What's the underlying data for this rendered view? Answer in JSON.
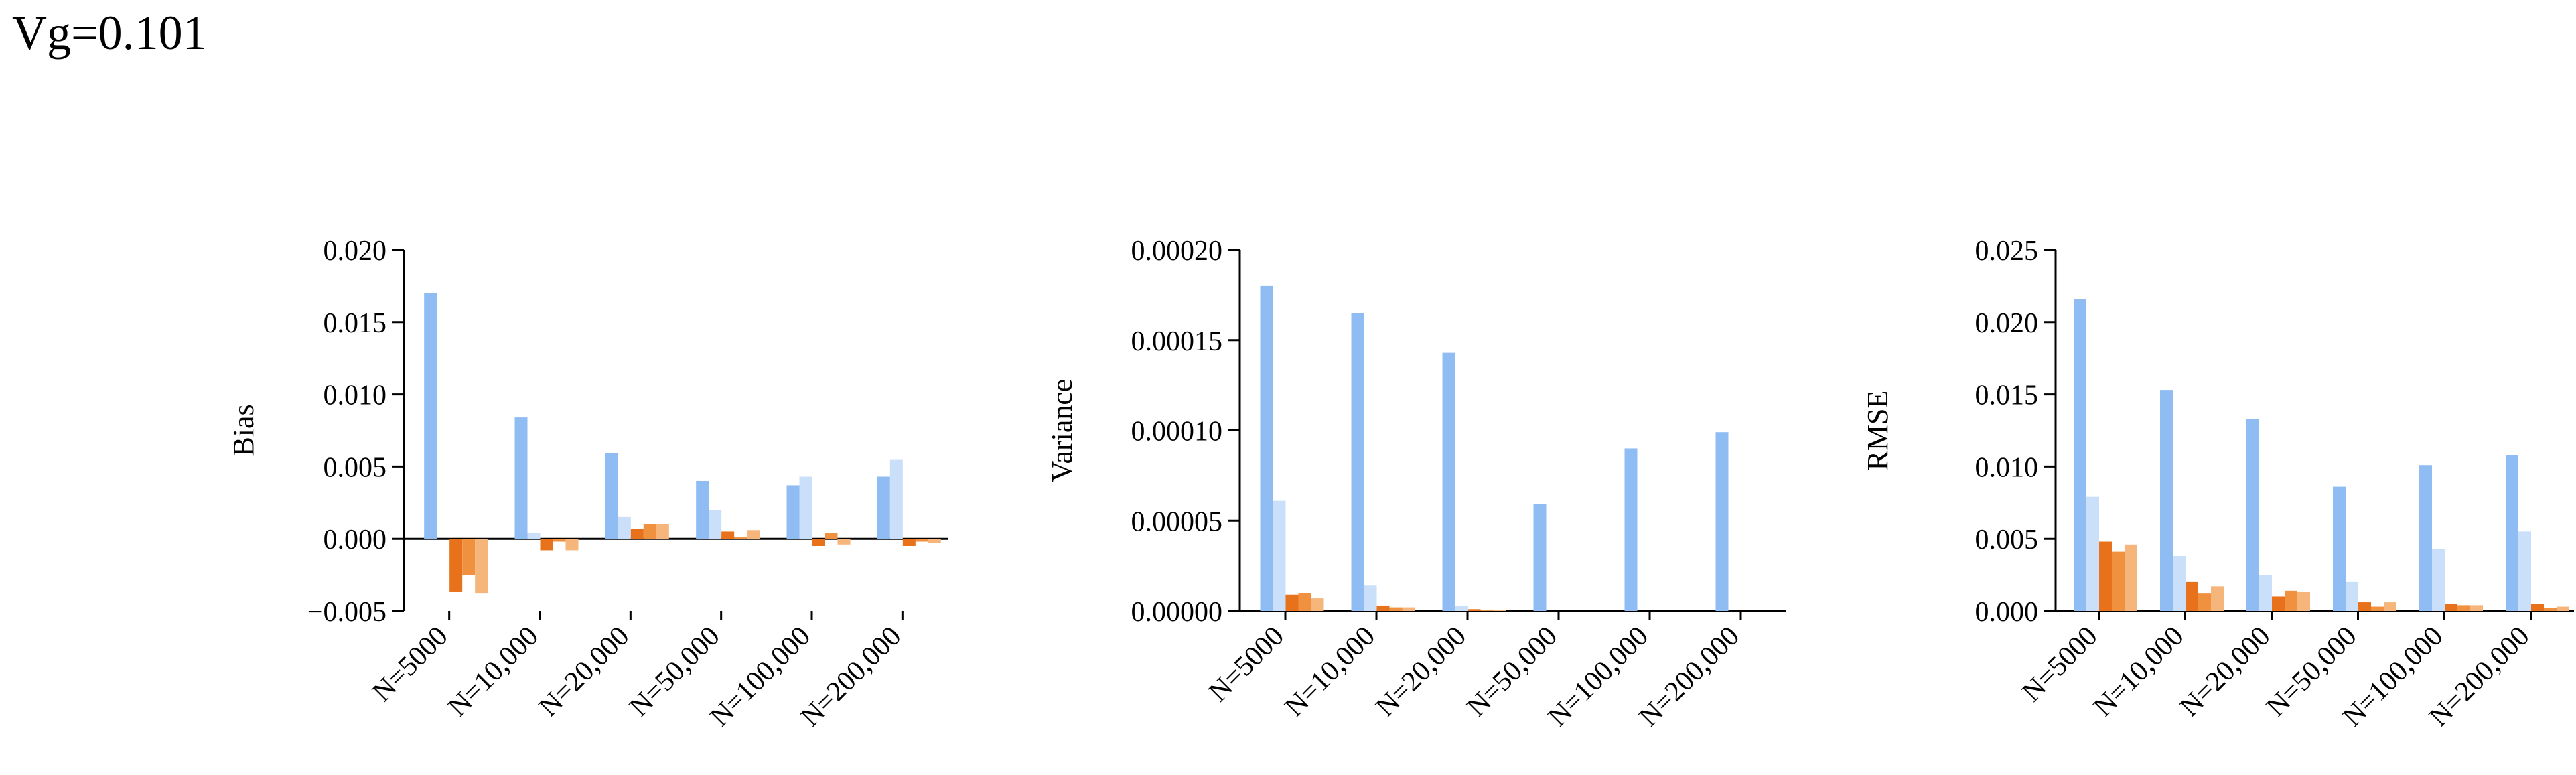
{
  "title": "Vg=0.101",
  "colors": [
    "#8FBCF2",
    "#C9DFFA",
    "#E8721B",
    "#F0913F",
    "#F6B57B"
  ],
  "chart_data": [
    {
      "type": "bar",
      "ylabel": "Bias",
      "ylim": [
        -0.005,
        0.02
      ],
      "yticks": [
        -0.005,
        0.0,
        0.005,
        0.01,
        0.015,
        0.02
      ],
      "tick_labels": [
        "−0.005",
        "0.000",
        "0.005",
        "0.010",
        "0.015",
        "0.020"
      ],
      "categories": [
        "N=5000",
        "N=10,000",
        "N=20,000",
        "N=50,000",
        "N=100,000",
        "N=200,000"
      ],
      "series": [
        {
          "values": [
            0.017,
            0.0084,
            0.0059,
            0.004,
            0.0037,
            0.0043
          ]
        },
        {
          "values": [
            0.0,
            0.0004,
            0.0015,
            0.002,
            0.0043,
            0.0055
          ]
        },
        {
          "values": [
            -0.0037,
            -0.0008,
            0.0007,
            0.0005,
            -0.0005,
            -0.0005
          ]
        },
        {
          "values": [
            -0.0025,
            -0.0002,
            0.001,
            0.0001,
            0.0004,
            -0.0002
          ]
        },
        {
          "values": [
            -0.0038,
            -0.0008,
            0.001,
            0.0006,
            -0.0004,
            -0.0003
          ]
        }
      ]
    },
    {
      "type": "bar",
      "ylabel": "Variance",
      "ylim": [
        0,
        0.0002
      ],
      "yticks": [
        0,
        5e-05,
        0.0001,
        0.00015,
        0.0002
      ],
      "tick_labels": [
        "0.00000",
        "0.00005",
        "0.00010",
        "0.00015",
        "0.00020"
      ],
      "categories": [
        "N=5000",
        "N=10,000",
        "N=20,000",
        "N=50,000",
        "N=100,000",
        "N=200,000"
      ],
      "series": [
        {
          "values": [
            0.00018,
            0.000165,
            0.000143,
            5.9e-05,
            9e-05,
            9.9e-05
          ]
        },
        {
          "values": [
            6.1e-05,
            1.4e-05,
            3e-06,
            0.0,
            0.0,
            0.0
          ]
        },
        {
          "values": [
            9e-06,
            3e-06,
            1e-06,
            0.0,
            0.0,
            0.0
          ]
        },
        {
          "values": [
            1e-05,
            2e-06,
            5e-07,
            0.0,
            0.0,
            0.0
          ]
        },
        {
          "values": [
            7e-06,
            2e-06,
            5e-07,
            0.0,
            0.0,
            0.0
          ]
        }
      ]
    },
    {
      "type": "bar",
      "ylabel": "RMSE",
      "ylim": [
        0,
        0.025
      ],
      "yticks": [
        0,
        0.005,
        0.01,
        0.015,
        0.02,
        0.025
      ],
      "tick_labels": [
        "0.000",
        "0.005",
        "0.010",
        "0.015",
        "0.020",
        "0.025"
      ],
      "categories": [
        "N=5000",
        "N=10,000",
        "N=20,000",
        "N=50,000",
        "N=100,000",
        "N=200,000"
      ],
      "series": [
        {
          "values": [
            0.0216,
            0.0153,
            0.0133,
            0.0086,
            0.0101,
            0.0108
          ]
        },
        {
          "values": [
            0.0079,
            0.0038,
            0.0025,
            0.002,
            0.0043,
            0.0055
          ]
        },
        {
          "values": [
            0.0048,
            0.002,
            0.001,
            0.0006,
            0.0005,
            0.0005
          ]
        },
        {
          "values": [
            0.0041,
            0.0012,
            0.0014,
            0.0003,
            0.0004,
            0.0002
          ]
        },
        {
          "values": [
            0.0046,
            0.0017,
            0.0013,
            0.0006,
            0.0004,
            0.0003
          ]
        }
      ]
    }
  ]
}
